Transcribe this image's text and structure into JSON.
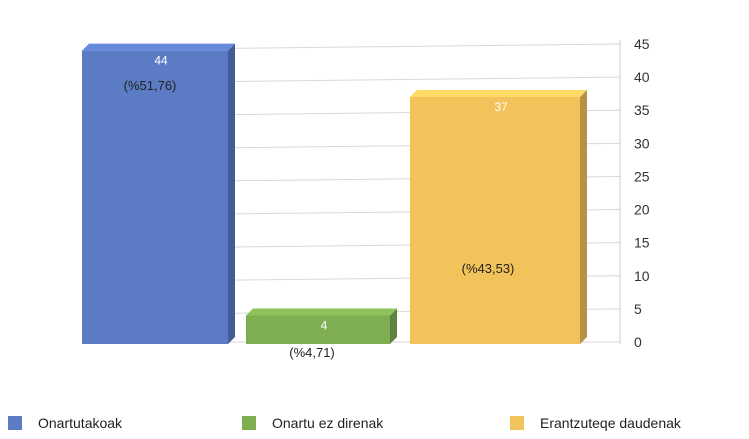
{
  "chart_data": {
    "type": "bar",
    "categories": [
      "Onartutakoak",
      "Onartu ez direnak",
      "Erantzuteqe daudenak"
    ],
    "values": [
      44,
      4,
      37
    ],
    "value_labels": [
      "44",
      "4",
      "37"
    ],
    "percent_labels": [
      "(%51,76)",
      "(%4,71)",
      "(%43,53)"
    ],
    "colors": [
      "#5b7bc4",
      "#7fad52",
      "#f2c35a"
    ],
    "ylim": [
      0,
      45
    ],
    "yticks": [
      "0",
      "5",
      "10",
      "15",
      "20",
      "25",
      "30",
      "35",
      "40",
      "45"
    ],
    "grid": true,
    "legend_position": "bottom",
    "title": "",
    "xlabel": "",
    "ylabel": ""
  },
  "legend": {
    "items": [
      {
        "label": "Onartutakoak",
        "color": "#5b7bc4"
      },
      {
        "label": "Onartu ez direnak",
        "color": "#7fad52"
      },
      {
        "label": "Erantzuteqe daudenak",
        "color": "#f2c35a"
      }
    ]
  }
}
